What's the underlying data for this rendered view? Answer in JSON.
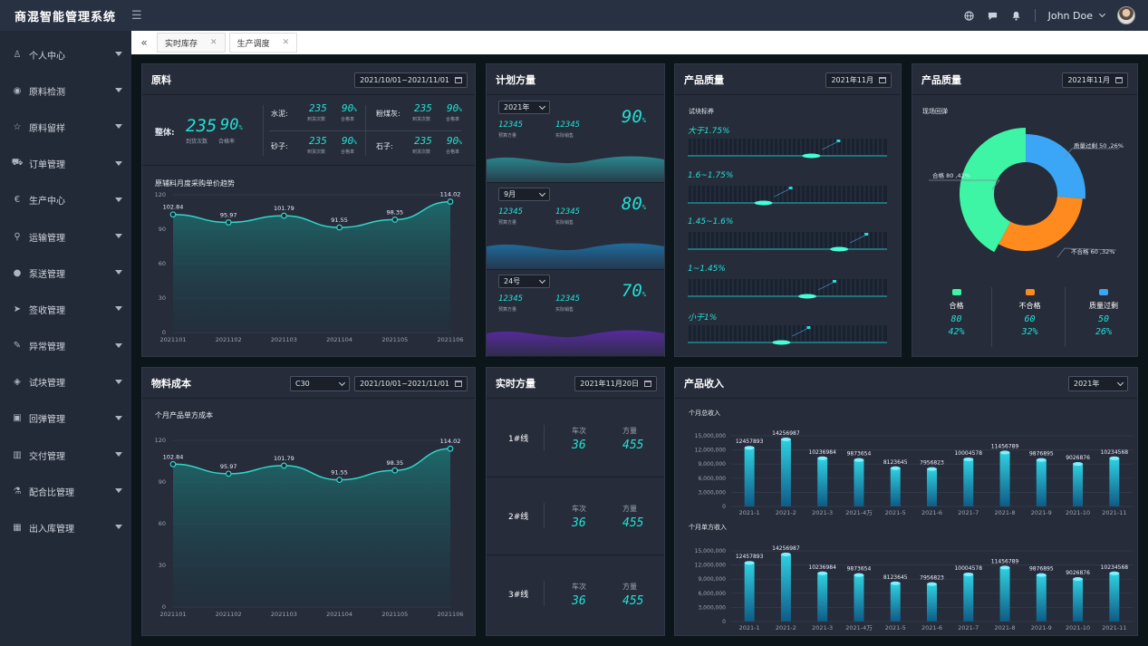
{
  "app": {
    "title": "商混智能管理系统",
    "user": "John Doe"
  },
  "icons": [
    "globe-icon",
    "chat-icon",
    "bell-icon",
    "menu-icon",
    "collapse-icon"
  ],
  "sidebar": [
    {
      "label": "个人中心",
      "icon": "user-icon"
    },
    {
      "label": "原料检测",
      "icon": "compass-icon"
    },
    {
      "label": "原料留样",
      "icon": "star-icon"
    },
    {
      "label": "订单管理",
      "icon": "cart-icon"
    },
    {
      "label": "生产中心",
      "icon": "euro-icon"
    },
    {
      "label": "运输管理",
      "icon": "pin-icon"
    },
    {
      "label": "泵送管理",
      "icon": "circle-icon"
    },
    {
      "label": "签收管理",
      "icon": "send-icon"
    },
    {
      "label": "异常管理",
      "icon": "edit-icon"
    },
    {
      "label": "试块管理",
      "icon": "cube-icon"
    },
    {
      "label": "回弹管理",
      "icon": "image-icon"
    },
    {
      "label": "交付管理",
      "icon": "book-icon"
    },
    {
      "label": "配合比管理",
      "icon": "flask-icon"
    },
    {
      "label": "出入库管理",
      "icon": "building-icon"
    }
  ],
  "tabs": [
    {
      "label": "实时库存"
    },
    {
      "label": "生产调度"
    }
  ],
  "raw": {
    "title": "原料",
    "date": "2021/10/01~2021/11/01",
    "overall": {
      "label": "整体:",
      "count": "235",
      "rate": "90",
      "unit": "%",
      "c_label": "到货次数",
      "r_label": "合格率"
    },
    "items": [
      {
        "name": "水泥:",
        "count": "235",
        "rate": "90",
        "unit": "%",
        "c_label": "到货次数",
        "r_label": "合格率"
      },
      {
        "name": "粉煤灰:",
        "count": "235",
        "rate": "90",
        "unit": "%",
        "c_label": "到货次数",
        "r_label": "合格率"
      },
      {
        "name": "砂子:",
        "count": "235",
        "rate": "90",
        "unit": "%",
        "c_label": "到货次数",
        "r_label": "合格率"
      },
      {
        "name": "石子:",
        "count": "235",
        "rate": "90",
        "unit": "%",
        "c_label": "到货次数",
        "r_label": "合格率"
      }
    ],
    "chart_title": "原辅料月度采购单价趋势"
  },
  "plan": {
    "title": "计划方量",
    "rows": [
      {
        "select": "2021年",
        "v1": "12345",
        "v2": "12345",
        "l1": "预算方量",
        "l2": "实际销售",
        "pct": "90",
        "unit": "%",
        "wave": "#2a8c93"
      },
      {
        "select": "9月",
        "v1": "12345",
        "v2": "12345",
        "l1": "预算方量",
        "l2": "实际销售",
        "pct": "80",
        "unit": "%",
        "wave": "#1e6fa3"
      },
      {
        "select": "24号",
        "v1": "12345",
        "v2": "12345",
        "l1": "预算方量",
        "l2": "实际销售",
        "pct": "70",
        "unit": "%",
        "wave": "#5a2aa3"
      }
    ]
  },
  "quality1": {
    "title": "产品质量",
    "date": "2021年11月",
    "sub": "试块标养",
    "bands": [
      {
        "label": "大于1.75%",
        "level": 0.62
      },
      {
        "label": "1.6~1.75%",
        "level": 0.38
      },
      {
        "label": "1.45~1.6%",
        "level": 0.76
      },
      {
        "label": "1~1.45%",
        "level": 0.6
      },
      {
        "label": "小于1%",
        "level": 0.47
      }
    ]
  },
  "quality2": {
    "title": "产品质量",
    "date": "2021年11月",
    "sub": "现场回弹",
    "legend": [
      {
        "name": "合格",
        "count": "80",
        "pct": "42%",
        "color": "#3df5a5"
      },
      {
        "name": "不合格",
        "count": "60",
        "pct": "32%",
        "color": "#ff8a1e"
      },
      {
        "name": "质量过剩",
        "count": "50",
        "pct": "26%",
        "color": "#3aa6f5"
      }
    ],
    "pie_labels": [
      "质量过剩 50 ,26%",
      "合格 80 ,42%",
      "不合格 60 ,32%"
    ]
  },
  "cost": {
    "title": "物料成本",
    "grade": "C30",
    "date": "2021/10/01~2021/11/01",
    "chart_title": "个月产品单方成本"
  },
  "realtime": {
    "title": "实时方量",
    "date": "2021年11月20日",
    "lines": [
      {
        "name": "1#线",
        "c_label": "车次",
        "v_label": "方量",
        "trips": "36",
        "volume": "455"
      },
      {
        "name": "2#线",
        "c_label": "车次",
        "v_label": "方量",
        "trips": "36",
        "volume": "455"
      },
      {
        "name": "3#线",
        "c_label": "车次",
        "v_label": "方量",
        "trips": "36",
        "volume": "455"
      }
    ]
  },
  "income": {
    "title": "产品收入",
    "year": "2021年",
    "sub1": "个月总收入",
    "sub2": "个月单方收入"
  },
  "chart_data": [
    {
      "type": "area",
      "id": "raw",
      "title": "原辅料月度采购单价趋势",
      "x": [
        "2021101",
        "2021102",
        "2021103",
        "2021104",
        "2021105",
        "2021106"
      ],
      "values": [
        102.84,
        95.97,
        101.79,
        91.55,
        98.35,
        114.02
      ],
      "ylim": [
        0,
        120
      ],
      "yticks": [
        0,
        30,
        60,
        90,
        120
      ],
      "labels": [
        "102.84",
        "95.97",
        "101.79",
        "91.55",
        "98.35",
        "114.02"
      ]
    },
    {
      "type": "area",
      "id": "cost",
      "title": "个月产品单方成本",
      "x": [
        "2021101",
        "2021102",
        "2021103",
        "2021104",
        "2021105",
        "2021106"
      ],
      "values": [
        102.84,
        95.97,
        101.79,
        91.55,
        98.35,
        114.02
      ],
      "ylim": [
        0,
        120
      ],
      "yticks": [
        0,
        30,
        60,
        90,
        120
      ],
      "labels": [
        "102.84",
        "95.97",
        "101.79",
        "91.55",
        "98.35",
        "114.02"
      ]
    },
    {
      "type": "bar",
      "id": "income1",
      "title": "个月总收入",
      "categories": [
        "2021-1",
        "2021-2",
        "2021-3",
        "2021-4万",
        "2021-5",
        "2021-6",
        "2021-7",
        "2021-8",
        "2021-9",
        "2021-10",
        "2021-11"
      ],
      "values": [
        12457893,
        14256987,
        10236984,
        9873654,
        8123645,
        7956823,
        10004578,
        11456789,
        9876895,
        9026876,
        10234568
      ],
      "ylim": [
        0,
        15000000
      ],
      "yticks": [
        "0",
        "3,000,000",
        "6,000,000",
        "9,000,000",
        "12,000,000",
        "15,000,000"
      ]
    },
    {
      "type": "bar",
      "id": "income2",
      "title": "个月单方收入",
      "categories": [
        "2021-1",
        "2021-2",
        "2021-3",
        "2021-4万",
        "2021-5",
        "2021-6",
        "2021-7",
        "2021-8",
        "2021-9",
        "2021-10",
        "2021-11"
      ],
      "values": [
        12457893,
        14256987,
        10236984,
        9873654,
        8123645,
        7956823,
        10004578,
        11456789,
        9876895,
        9026876,
        10234568
      ],
      "ylim": [
        0,
        15000000
      ],
      "yticks": [
        "0",
        "3,000,000",
        "6,000,000",
        "9,000,000",
        "12,000,000",
        "15,000,000"
      ]
    },
    {
      "type": "pie",
      "id": "quality",
      "title": "现场回弹",
      "categories": [
        "合格",
        "不合格",
        "质量过剩"
      ],
      "values": [
        80,
        60,
        50
      ],
      "percent": [
        42,
        32,
        26
      ]
    }
  ]
}
